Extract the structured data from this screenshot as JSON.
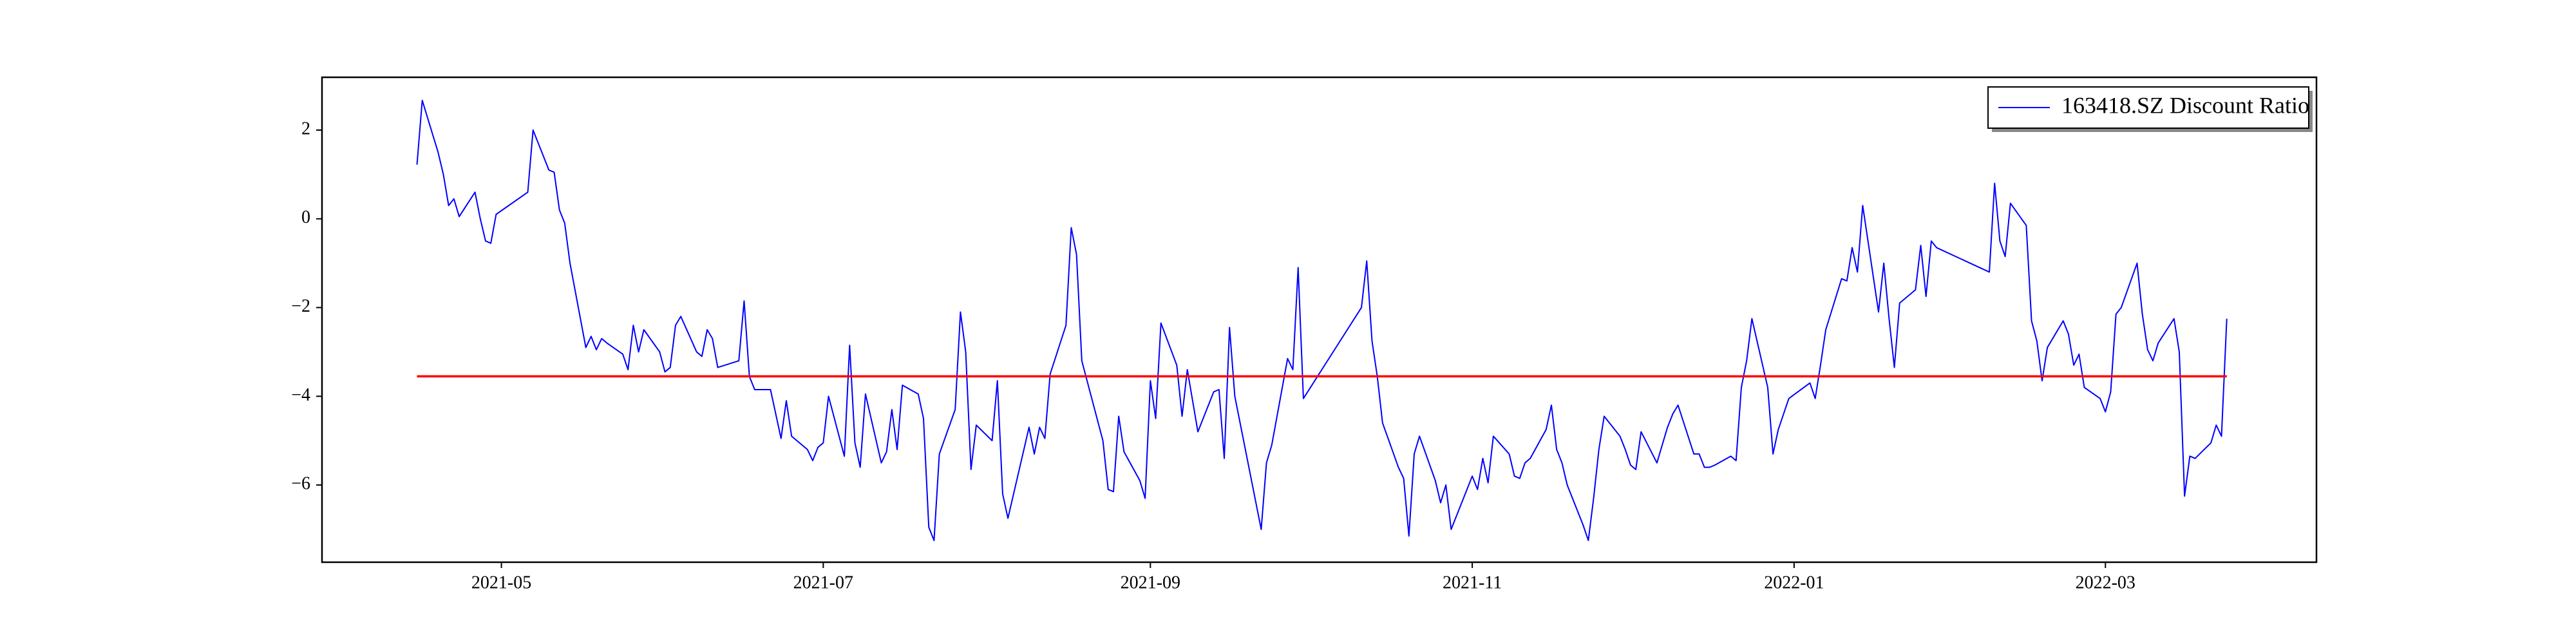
{
  "chart_data": {
    "type": "line",
    "series": [
      {
        "name": "163418.SZ Discount Ratio",
        "color": "#0000ff",
        "x": [
          "2021-04-15",
          "2021-04-16",
          "2021-04-19",
          "2021-04-20",
          "2021-04-21",
          "2021-04-22",
          "2021-04-23",
          "2021-04-26",
          "2021-04-27",
          "2021-04-28",
          "2021-04-29",
          "2021-04-30",
          "2021-05-06",
          "2021-05-07",
          "2021-05-10",
          "2021-05-11",
          "2021-05-12",
          "2021-05-13",
          "2021-05-14",
          "2021-05-17",
          "2021-05-18",
          "2021-05-19",
          "2021-05-20",
          "2021-05-21",
          "2021-05-24",
          "2021-05-25",
          "2021-05-26",
          "2021-05-27",
          "2021-05-28",
          "2021-05-31",
          "2021-06-01",
          "2021-06-02",
          "2021-06-03",
          "2021-06-04",
          "2021-06-07",
          "2021-06-08",
          "2021-06-09",
          "2021-06-10",
          "2021-06-11",
          "2021-06-15",
          "2021-06-16",
          "2021-06-17",
          "2021-06-18",
          "2021-06-21",
          "2021-06-23",
          "2021-06-24",
          "2021-06-25",
          "2021-06-28",
          "2021-06-29",
          "2021-06-30",
          "2021-07-01",
          "2021-07-02",
          "2021-07-05",
          "2021-07-06",
          "2021-07-07",
          "2021-07-08",
          "2021-07-09",
          "2021-07-12",
          "2021-07-13",
          "2021-07-14",
          "2021-07-15",
          "2021-07-16",
          "2021-07-19",
          "2021-07-20",
          "2021-07-21",
          "2021-07-22",
          "2021-07-23",
          "2021-07-26",
          "2021-07-27",
          "2021-07-28",
          "2021-07-29",
          "2021-07-30",
          "2021-08-02",
          "2021-08-03",
          "2021-08-04",
          "2021-08-05",
          "2021-08-09",
          "2021-08-10",
          "2021-08-11",
          "2021-08-12",
          "2021-08-13",
          "2021-08-16",
          "2021-08-17",
          "2021-08-18",
          "2021-08-19",
          "2021-08-23",
          "2021-08-24",
          "2021-08-25",
          "2021-08-26",
          "2021-08-27",
          "2021-08-30",
          "2021-08-31",
          "2021-09-01",
          "2021-09-02",
          "2021-09-03",
          "2021-09-06",
          "2021-09-07",
          "2021-09-08",
          "2021-09-10",
          "2021-09-13",
          "2021-09-14",
          "2021-09-15",
          "2021-09-16",
          "2021-09-17",
          "2021-09-22",
          "2021-09-23",
          "2021-09-24",
          "2021-09-27",
          "2021-09-28",
          "2021-09-29",
          "2021-09-30",
          "2021-10-11",
          "2021-10-12",
          "2021-10-13",
          "2021-10-14",
          "2021-10-15",
          "2021-10-18",
          "2021-10-19",
          "2021-10-20",
          "2021-10-21",
          "2021-10-22",
          "2021-10-25",
          "2021-10-26",
          "2021-10-27",
          "2021-10-28",
          "2021-10-29",
          "2021-11-01",
          "2021-11-02",
          "2021-11-03",
          "2021-11-04",
          "2021-11-05",
          "2021-11-08",
          "2021-11-09",
          "2021-11-10",
          "2021-11-11",
          "2021-11-12",
          "2021-11-15",
          "2021-11-16",
          "2021-11-17",
          "2021-11-18",
          "2021-11-19",
          "2021-11-22",
          "2021-11-23",
          "2021-11-24",
          "2021-11-25",
          "2021-11-26",
          "2021-11-29",
          "2021-11-30",
          "2021-12-01",
          "2021-12-02",
          "2021-12-03",
          "2021-12-06",
          "2021-12-07",
          "2021-12-08",
          "2021-12-09",
          "2021-12-10",
          "2021-12-13",
          "2021-12-14",
          "2021-12-15",
          "2021-12-16",
          "2021-12-17",
          "2021-12-20",
          "2021-12-21",
          "2021-12-22",
          "2021-12-23",
          "2021-12-24",
          "2021-12-27",
          "2021-12-28",
          "2021-12-29",
          "2021-12-30",
          "2021-12-31",
          "2022-01-04",
          "2022-01-05",
          "2022-01-06",
          "2022-01-07",
          "2022-01-10",
          "2022-01-11",
          "2022-01-12",
          "2022-01-13",
          "2022-01-14",
          "2022-01-17",
          "2022-01-18",
          "2022-01-19",
          "2022-01-20",
          "2022-01-21",
          "2022-01-24",
          "2022-01-25",
          "2022-01-26",
          "2022-01-27",
          "2022-01-28",
          "2022-02-07",
          "2022-02-08",
          "2022-02-09",
          "2022-02-10",
          "2022-02-11",
          "2022-02-14",
          "2022-02-15",
          "2022-02-16",
          "2022-02-17",
          "2022-02-18",
          "2022-02-21",
          "2022-02-22",
          "2022-02-23",
          "2022-02-24",
          "2022-02-25",
          "2022-02-28",
          "2022-03-01",
          "2022-03-02",
          "2022-03-03",
          "2022-03-04",
          "2022-03-07",
          "2022-03-08",
          "2022-03-09",
          "2022-03-10",
          "2022-03-11",
          "2022-03-14",
          "2022-03-15",
          "2022-03-16",
          "2022-03-17",
          "2022-03-18",
          "2022-03-21",
          "2022-03-22",
          "2022-03-23",
          "2022-03-24"
        ],
        "values": [
          1.22,
          2.67,
          1.5,
          1.0,
          0.3,
          0.45,
          0.05,
          0.6,
          0.0,
          -0.5,
          -0.55,
          0.1,
          0.6,
          2.0,
          1.1,
          1.05,
          0.2,
          -0.1,
          -1.0,
          -2.9,
          -2.65,
          -2.95,
          -2.7,
          -2.8,
          -3.05,
          -3.4,
          -2.4,
          -3.0,
          -2.5,
          -3.0,
          -3.45,
          -3.35,
          -2.4,
          -2.2,
          -3.0,
          -3.1,
          -2.5,
          -2.7,
          -3.35,
          -3.2,
          -1.85,
          -3.55,
          -3.85,
          -3.85,
          -4.95,
          -4.1,
          -4.9,
          -5.2,
          -5.45,
          -5.15,
          -5.05,
          -4.0,
          -5.35,
          -2.85,
          -5.05,
          -5.6,
          -3.95,
          -5.5,
          -5.25,
          -4.3,
          -5.2,
          -3.75,
          -3.95,
          -4.5,
          -6.95,
          -7.25,
          -5.3,
          -4.3,
          -2.1,
          -3.0,
          -5.65,
          -4.65,
          -5.0,
          -3.65,
          -6.2,
          -6.75,
          -4.7,
          -5.3,
          -4.7,
          -4.95,
          -3.5,
          -2.4,
          -0.2,
          -0.8,
          -3.2,
          -5.0,
          -6.1,
          -6.15,
          -4.45,
          -5.25,
          -5.9,
          -6.3,
          -3.65,
          -4.5,
          -2.35,
          -3.3,
          -4.45,
          -3.4,
          -4.8,
          -3.9,
          -3.85,
          -5.4,
          -2.45,
          -4.0,
          -7.0,
          -5.5,
          -5.1,
          -3.15,
          -3.4,
          -1.1,
          -4.05,
          -2.0,
          -0.95,
          -2.75,
          -3.55,
          -4.6,
          -5.6,
          -5.85,
          -7.15,
          -5.3,
          -4.9,
          -5.9,
          -6.4,
          -6.0,
          -7.0,
          -6.7,
          -5.8,
          -6.1,
          -5.4,
          -5.95,
          -4.9,
          -5.3,
          -5.8,
          -5.85,
          -5.5,
          -5.4,
          -4.75,
          -4.2,
          -5.2,
          -5.5,
          -6.0,
          -6.9,
          -7.25,
          -6.3,
          -5.2,
          -4.45,
          -4.9,
          -5.2,
          -5.55,
          -5.65,
          -4.8,
          -5.5,
          -5.1,
          -4.7,
          -4.4,
          -4.2,
          -5.3,
          -5.3,
          -5.6,
          -5.6,
          -5.55,
          -5.35,
          -5.45,
          -3.8,
          -3.2,
          -2.25,
          -3.8,
          -5.3,
          -4.75,
          -4.4,
          -4.05,
          -3.7,
          -4.05,
          -3.3,
          -2.5,
          -1.35,
          -1.4,
          -0.65,
          -1.2,
          0.3,
          -2.1,
          -1.0,
          -2.25,
          -3.35,
          -1.9,
          -1.6,
          -0.6,
          -1.75,
          -0.5,
          -0.65,
          -1.2,
          0.8,
          -0.5,
          -0.85,
          0.35,
          -0.15,
          -2.3,
          -2.75,
          -3.65,
          -2.9,
          -2.3,
          -2.6,
          -3.3,
          -3.05,
          -3.8,
          -4.05,
          -4.35,
          -3.9,
          -2.15,
          -2.0,
          -1.0,
          -2.15,
          -2.95,
          -3.2,
          -2.8,
          -2.25,
          -3.0,
          -6.25,
          -5.35,
          -5.4,
          -5.05,
          -4.65,
          -4.9,
          -2.25
        ]
      }
    ],
    "hline": {
      "value": -3.55,
      "color": "#ff0000"
    },
    "xlim": [
      "2021-03-28",
      "2022-04-10"
    ],
    "xticks": [
      {
        "value": "2021-05-01",
        "label": "2021-05"
      },
      {
        "value": "2021-07-01",
        "label": "2021-07"
      },
      {
        "value": "2021-09-01",
        "label": "2021-09"
      },
      {
        "value": "2021-11-01",
        "label": "2021-11"
      },
      {
        "value": "2022-01-01",
        "label": "2022-01"
      },
      {
        "value": "2022-03-01",
        "label": "2022-03"
      }
    ],
    "ylim": [
      -7.74,
      3.19
    ],
    "yticks": [
      {
        "value": -6,
        "label": "−6"
      },
      {
        "value": -4,
        "label": "−4"
      },
      {
        "value": -2,
        "label": "−2"
      },
      0,
      2
    ],
    "legend": "upper right"
  }
}
